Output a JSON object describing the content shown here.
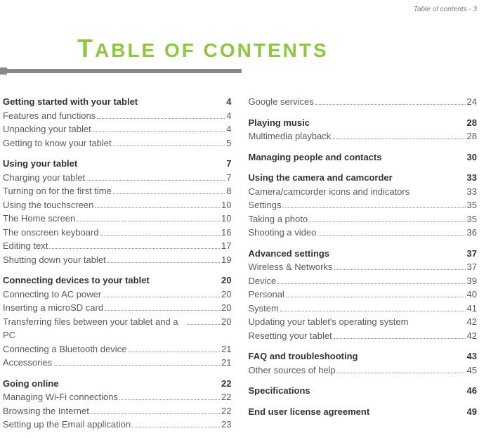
{
  "header": {
    "label": "Table of contents - 3"
  },
  "title": {
    "prefix": "T",
    "rest": "ABLE OF CONTENTS"
  },
  "colors": {
    "accent_green": "#8dc63f",
    "rule_gray": "#888888",
    "text_gray": "#5a5a5a",
    "heading_gray": "#333333",
    "bg": "#ffffff"
  },
  "typography": {
    "title_fontsize": 28,
    "title_letter_spacing": 3,
    "heading_fontsize": 13,
    "entry_fontsize": 13,
    "header_label_fontsize": 10
  },
  "left": [
    {
      "type": "head",
      "label": "Getting started with your tablet",
      "pg": "4"
    },
    {
      "type": "entry",
      "label": "Features and functions",
      "pg": "4"
    },
    {
      "type": "entry",
      "label": "Unpacking your tablet",
      "pg": "4"
    },
    {
      "type": "entry",
      "label": "Getting to know your tablet",
      "pg": "5"
    },
    {
      "type": "head",
      "label": "Using your tablet",
      "pg": "7"
    },
    {
      "type": "entry",
      "label": "Charging your tablet",
      "pg": "7"
    },
    {
      "type": "entry",
      "label": "Turning on for the first time",
      "pg": "8"
    },
    {
      "type": "entry",
      "label": "Using the touchscreen",
      "pg": "10"
    },
    {
      "type": "entry",
      "label": "The Home screen",
      "pg": "10"
    },
    {
      "type": "entry",
      "label": "The onscreen keyboard",
      "pg": "16"
    },
    {
      "type": "entry",
      "label": "Editing text",
      "pg": "17"
    },
    {
      "type": "entry",
      "label": "Shutting down your tablet",
      "pg": "19"
    },
    {
      "type": "head",
      "label": "Connecting devices to your tablet",
      "pg": "20"
    },
    {
      "type": "entry",
      "label": "Connecting to AC power",
      "pg": "20"
    },
    {
      "type": "entry",
      "label": "Inserting a microSD card",
      "pg": "20"
    },
    {
      "type": "entry",
      "label": "Transferring files between your tablet and a PC",
      "pg": "20"
    },
    {
      "type": "entry",
      "label": "Connecting a Bluetooth device",
      "pg": "21"
    },
    {
      "type": "entry",
      "label": "Accessories",
      "pg": "21"
    },
    {
      "type": "head",
      "label": "Going online",
      "pg": "22"
    },
    {
      "type": "entry",
      "label": "Managing Wi-Fi connections",
      "pg": "22"
    },
    {
      "type": "entry",
      "label": "Browsing the Internet",
      "pg": "22"
    },
    {
      "type": "entry",
      "label": "Setting up the Email application",
      "pg": "23"
    }
  ],
  "right": [
    {
      "type": "entry",
      "label": "Google services",
      "pg": "24"
    },
    {
      "type": "head",
      "label": "Playing music",
      "pg": "28"
    },
    {
      "type": "entry",
      "label": "Multimedia playback",
      "pg": "28"
    },
    {
      "type": "head",
      "label": "Managing people and contacts",
      "pg": "30"
    },
    {
      "type": "head",
      "label": "Using the camera and camcorder",
      "pg": "33"
    },
    {
      "type": "entry",
      "label": "Camera/camcorder icons and indicators",
      "pg": "33",
      "nodots": true
    },
    {
      "type": "entry",
      "label": "Settings",
      "pg": "35"
    },
    {
      "type": "entry",
      "label": "Taking a photo",
      "pg": "35"
    },
    {
      "type": "entry",
      "label": "Shooting a video",
      "pg": "36"
    },
    {
      "type": "head",
      "label": "Advanced settings",
      "pg": "37"
    },
    {
      "type": "entry",
      "label": "Wireless & Networks",
      "pg": "37"
    },
    {
      "type": "entry",
      "label": "Device",
      "pg": "39"
    },
    {
      "type": "entry",
      "label": "Personal",
      "pg": "40"
    },
    {
      "type": "entry",
      "label": "System",
      "pg": "41"
    },
    {
      "type": "entry",
      "label": "Updating your tablet's operating system",
      "pg": "42",
      "nodots": true
    },
    {
      "type": "entry",
      "label": "Resetting your tablet",
      "pg": "42"
    },
    {
      "type": "head",
      "label": "FAQ and troubleshooting",
      "pg": "43"
    },
    {
      "type": "entry",
      "label": "Other sources of help",
      "pg": "45"
    },
    {
      "type": "head",
      "label": "Specifications",
      "pg": "46"
    },
    {
      "type": "head",
      "label": "End user license agreement",
      "pg": "49"
    }
  ]
}
